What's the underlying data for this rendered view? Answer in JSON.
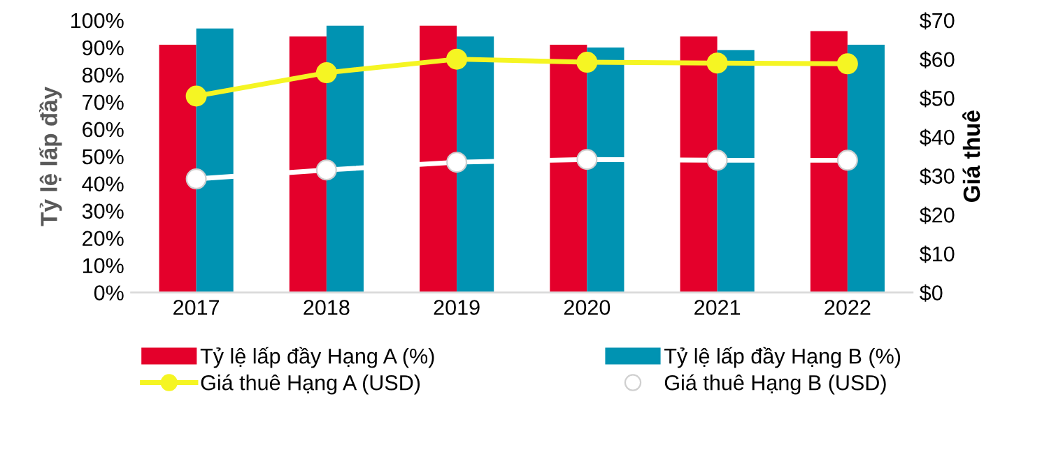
{
  "chart_data": {
    "type": "bar",
    "ylabel": "Tỷ lệ lấp đầy",
    "y2label": "Giá thuê",
    "categories": [
      "2017",
      "2018",
      "2019",
      "2020",
      "2021",
      "2022"
    ],
    "series": [
      {
        "name": "Tỷ lệ lấp đầy Hạng A (%)",
        "color": "#e4002b",
        "values": [
          91,
          94,
          98,
          91,
          94,
          96
        ]
      },
      {
        "name": "Tỷ lệ lấp đầy Hạng B (%)",
        "color": "#0093b2",
        "values": [
          97,
          98,
          94,
          90,
          89,
          91
        ]
      },
      {
        "name": "Giá thuê Hạng A (USD)",
        "type": "line",
        "axis": "y2",
        "color": "#f5f523",
        "marker": "circle",
        "values": [
          50.5,
          56.5,
          60,
          59.2,
          59,
          58.8
        ]
      },
      {
        "name": "Giá thuê Hạng B (USD)",
        "type": "line",
        "axis": "y2",
        "color": "#ffffff",
        "marker": "circle",
        "values": [
          29.2,
          31.5,
          33.5,
          34.2,
          34,
          34
        ]
      }
    ],
    "ylim": [
      0,
      100
    ],
    "yticks": [
      {
        "value": 0,
        "label": "0%"
      },
      {
        "value": 10,
        "label": "10%"
      },
      {
        "value": 20,
        "label": "20%"
      },
      {
        "value": 30,
        "label": "30%"
      },
      {
        "value": 40,
        "label": "40%"
      },
      {
        "value": 50,
        "label": "50%"
      },
      {
        "value": 60,
        "label": "60%"
      },
      {
        "value": 70,
        "label": "70%"
      },
      {
        "value": 80,
        "label": "80%"
      },
      {
        "value": 90,
        "label": "90%"
      },
      {
        "value": 100,
        "label": "100%"
      }
    ],
    "y2lim": [
      0,
      70
    ],
    "y2ticks": [
      {
        "value": 0,
        "label": "$0"
      },
      {
        "value": 10,
        "label": "$10"
      },
      {
        "value": 20,
        "label": "$20"
      },
      {
        "value": 30,
        "label": "$30"
      },
      {
        "value": 40,
        "label": "$40"
      },
      {
        "value": 50,
        "label": "$50"
      },
      {
        "value": 60,
        "label": "$60"
      },
      {
        "value": 70,
        "label": "$70"
      }
    ],
    "grid": false,
    "legend": "bottom"
  }
}
